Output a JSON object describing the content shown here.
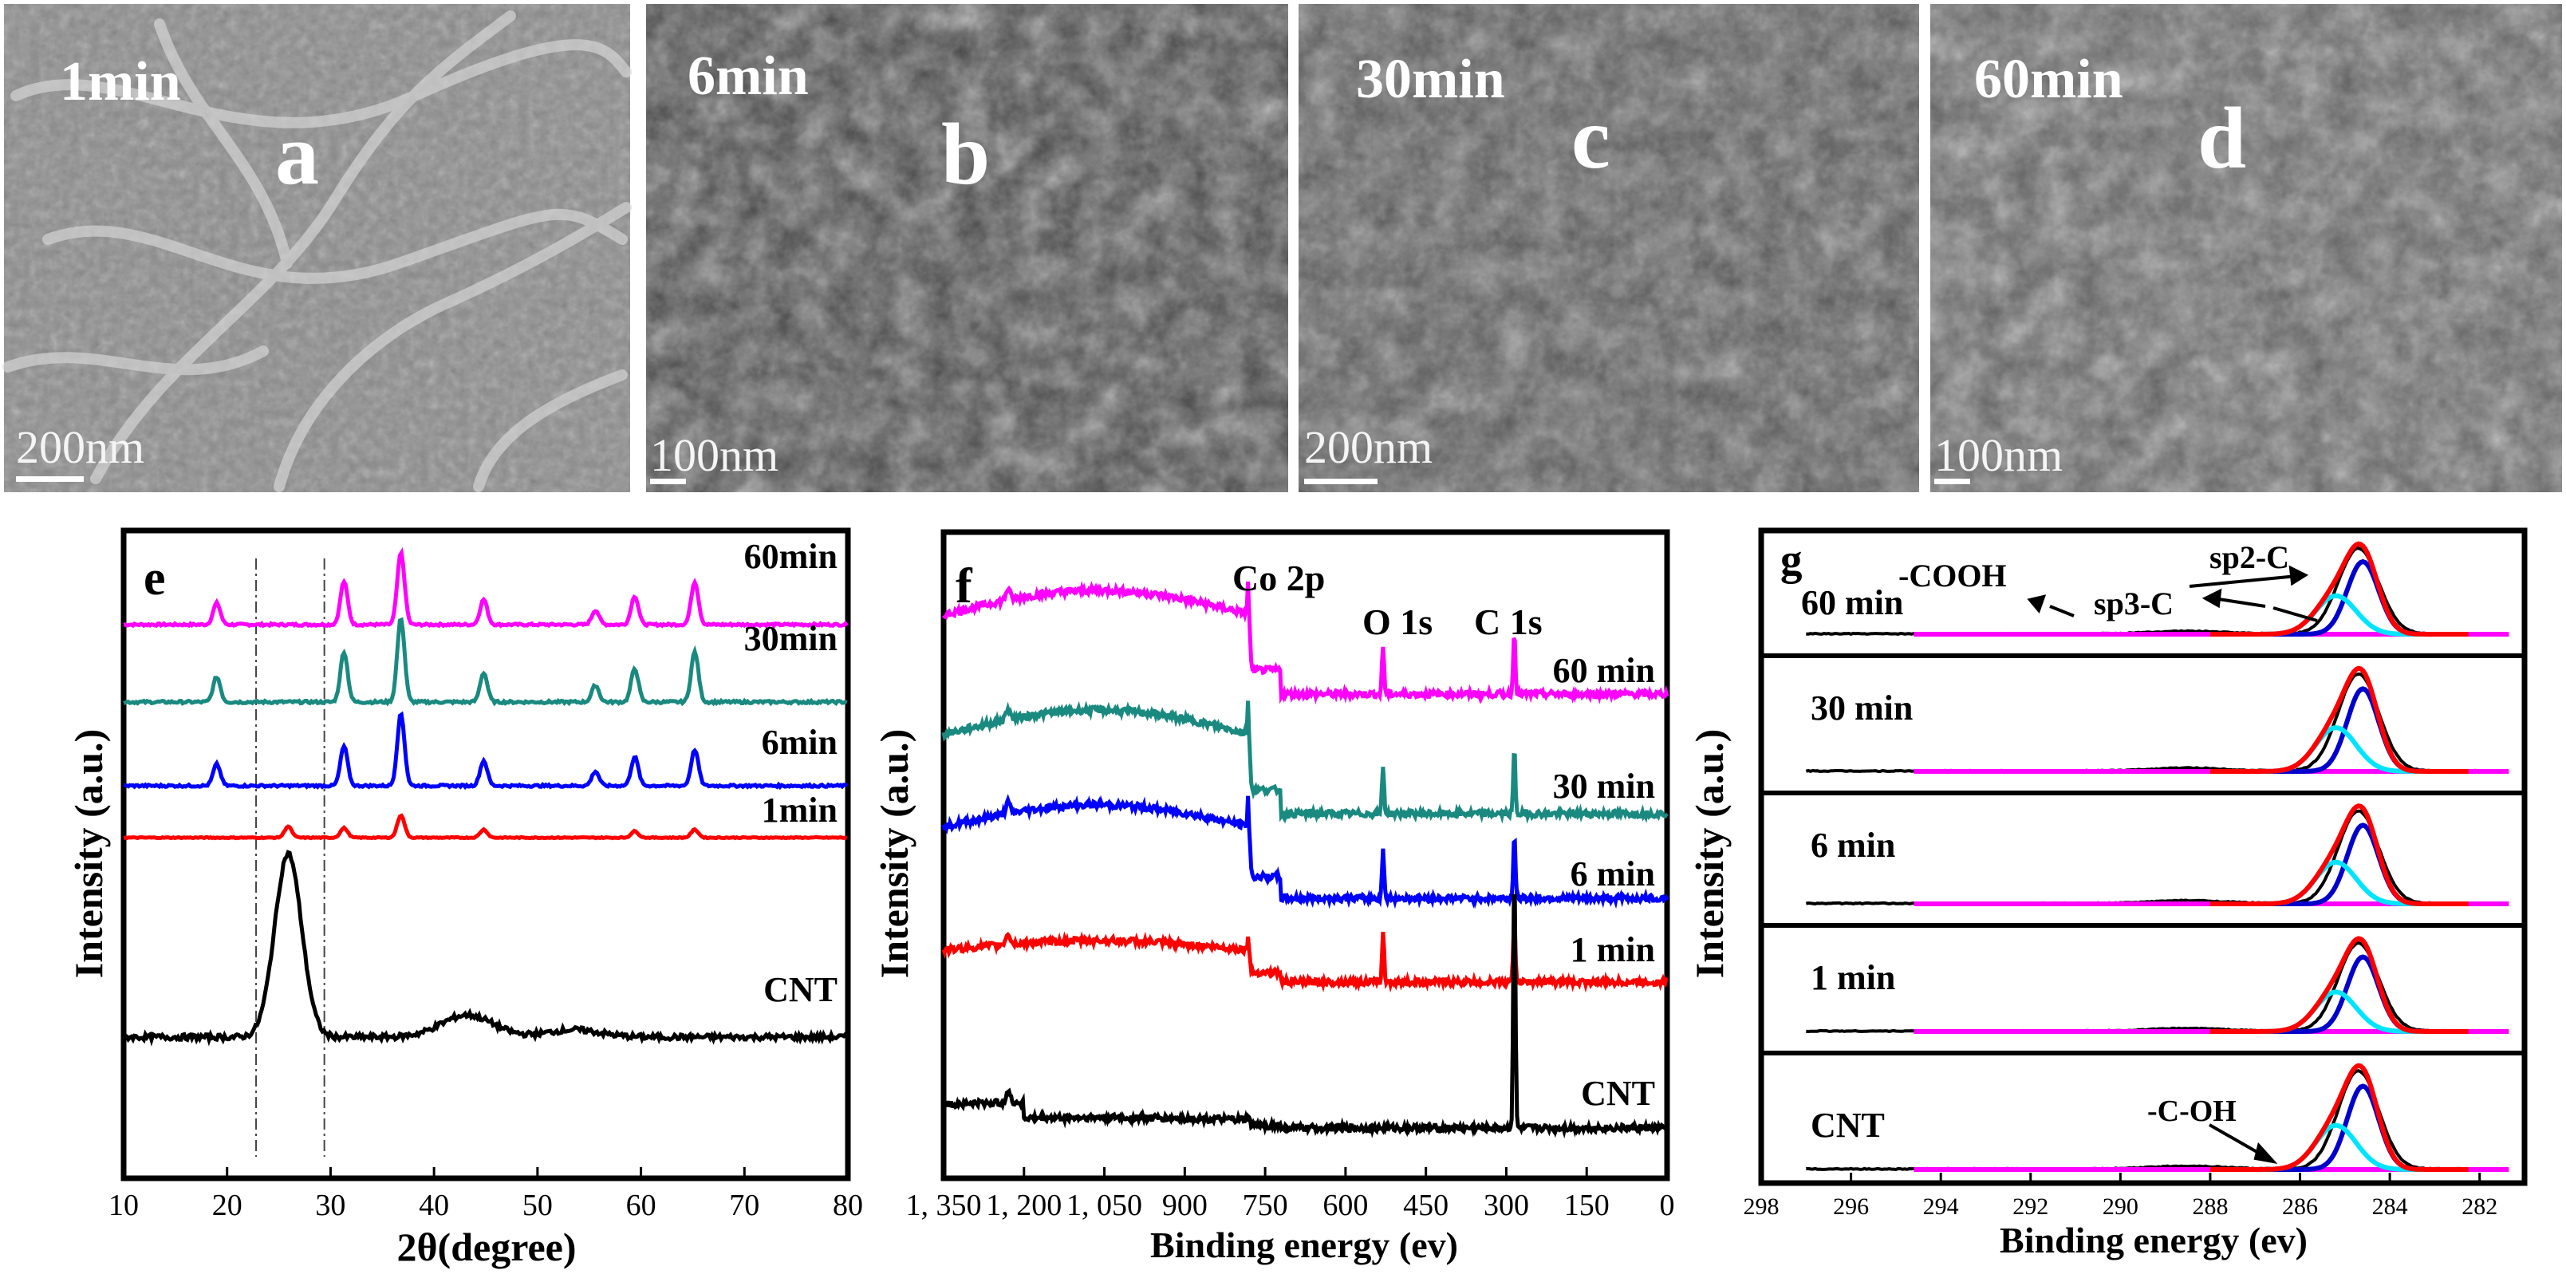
{
  "sem_panels": [
    {
      "time": "1min",
      "letter": "a",
      "scale": "200nm"
    },
    {
      "time": "6min",
      "letter": "b",
      "scale": "100nm"
    },
    {
      "time": "30min",
      "letter": "c",
      "scale": "200nm"
    },
    {
      "time": "60min",
      "letter": "d",
      "scale": "100nm"
    }
  ],
  "chart_data": [
    {
      "panel": "e",
      "type": "line",
      "xlabel": "2θ(degree)",
      "ylabel": "Intensity (a.u.)",
      "xlim": [
        10,
        80
      ],
      "xticks": [
        10,
        20,
        30,
        40,
        50,
        60,
        70,
        80
      ],
      "vlines": [
        22.8,
        29.4
      ],
      "series": [
        {
          "name": "60min",
          "color": "#ff00ff",
          "peaks": [
            [
              19,
              0.3
            ],
            [
              31.3,
              0.6
            ],
            [
              36.8,
              1
            ],
            [
              44.8,
              0.35
            ],
            [
              55.6,
              0.2
            ],
            [
              59.4,
              0.4
            ],
            [
              65.2,
              0.6
            ]
          ],
          "sharp": true
        },
        {
          "name": "30min",
          "color": "#1a8a80",
          "peaks": [
            [
              19,
              0.3
            ],
            [
              31.3,
              0.6
            ],
            [
              36.8,
              1
            ],
            [
              44.8,
              0.35
            ],
            [
              55.6,
              0.2
            ],
            [
              59.4,
              0.4
            ],
            [
              65.2,
              0.6
            ]
          ],
          "sharp": true
        },
        {
          "name": "6min",
          "color": "#0000ff",
          "peaks": [
            [
              19,
              0.3
            ],
            [
              31.3,
              0.55
            ],
            [
              36.8,
              1
            ],
            [
              44.8,
              0.35
            ],
            [
              55.6,
              0.2
            ],
            [
              59.4,
              0.4
            ],
            [
              65.2,
              0.5
            ]
          ],
          "sharp": true
        },
        {
          "name": "1min",
          "color": "#ff0000",
          "peaks": [
            [
              25.9,
              0.35
            ],
            [
              31.3,
              0.3
            ],
            [
              36.8,
              0.7
            ],
            [
              44.8,
              0.25
            ],
            [
              59.4,
              0.2
            ],
            [
              65.2,
              0.25
            ]
          ],
          "sharp": true
        },
        {
          "name": "CNT",
          "color": "#000000",
          "peaks": [
            [
              25.9,
              1
            ],
            [
              43.2,
              0.12
            ],
            [
              53.5,
              0.04
            ]
          ],
          "sharp": false
        }
      ]
    },
    {
      "panel": "f",
      "type": "line",
      "xlabel": "Binding energy (ev)",
      "ylabel": "Intensity (a.u.)",
      "xlim": [
        1350,
        0
      ],
      "xticks": [
        1350,
        1200,
        1050,
        900,
        750,
        600,
        450,
        300,
        150,
        0
      ],
      "xticklabels": [
        "1, 350",
        "1, 200",
        "1, 050",
        "900",
        "750",
        "600",
        "450",
        "300",
        "150",
        "0"
      ],
      "annotations": [
        "Co 2p",
        "O 1s",
        "C 1s"
      ],
      "series": [
        {
          "name": "60 min",
          "color": "#ff00ff"
        },
        {
          "name": "30 min",
          "color": "#1a8a80"
        },
        {
          "name": "6 min",
          "color": "#0000ff"
        },
        {
          "name": "1 min",
          "color": "#ff0000"
        },
        {
          "name": "CNT",
          "color": "#000000"
        }
      ]
    },
    {
      "panel": "g",
      "type": "line",
      "xlabel": "Binding energy (ev)",
      "ylabel": "Intensity (a.u.)",
      "xlim": [
        298,
        281
      ],
      "xticks": [
        298,
        296,
        294,
        292,
        290,
        288,
        286,
        284,
        282
      ],
      "annotations": [
        "-COOH",
        "sp2-C",
        "sp3-C",
        "-C-OH"
      ],
      "subplots": [
        "60 min",
        "30 min",
        "6 min",
        "1 min",
        "CNT"
      ],
      "components": [
        {
          "name": "sp2-C",
          "color": "#0000cc",
          "center": 284.6
        },
        {
          "name": "sp3-C",
          "color": "#00e5ff",
          "center": 285.2
        },
        {
          "name": "envelope",
          "color": "#ff0000"
        },
        {
          "name": "baseline",
          "color": "#ff00ff"
        },
        {
          "name": "raw",
          "color": "#000000"
        }
      ]
    }
  ],
  "labels": {
    "e": {
      "letter": "e",
      "xlabel": "2θ(degree)",
      "ylabel": "Intensity (a.u.)"
    },
    "f": {
      "letter": "f",
      "xlabel": "Binding energy (ev)",
      "ylabel": "Intensity (a.u.)",
      "co": "Co 2p",
      "o": "O 1s",
      "c": "C 1s"
    },
    "g": {
      "letter": "g",
      "xlabel": "Binding energy (ev)",
      "ylabel": "Intensity (a.u.)",
      "cooh": "-COOH",
      "sp2": "sp2-C",
      "sp3": "sp3-C",
      "coh": "-C-OH"
    }
  }
}
